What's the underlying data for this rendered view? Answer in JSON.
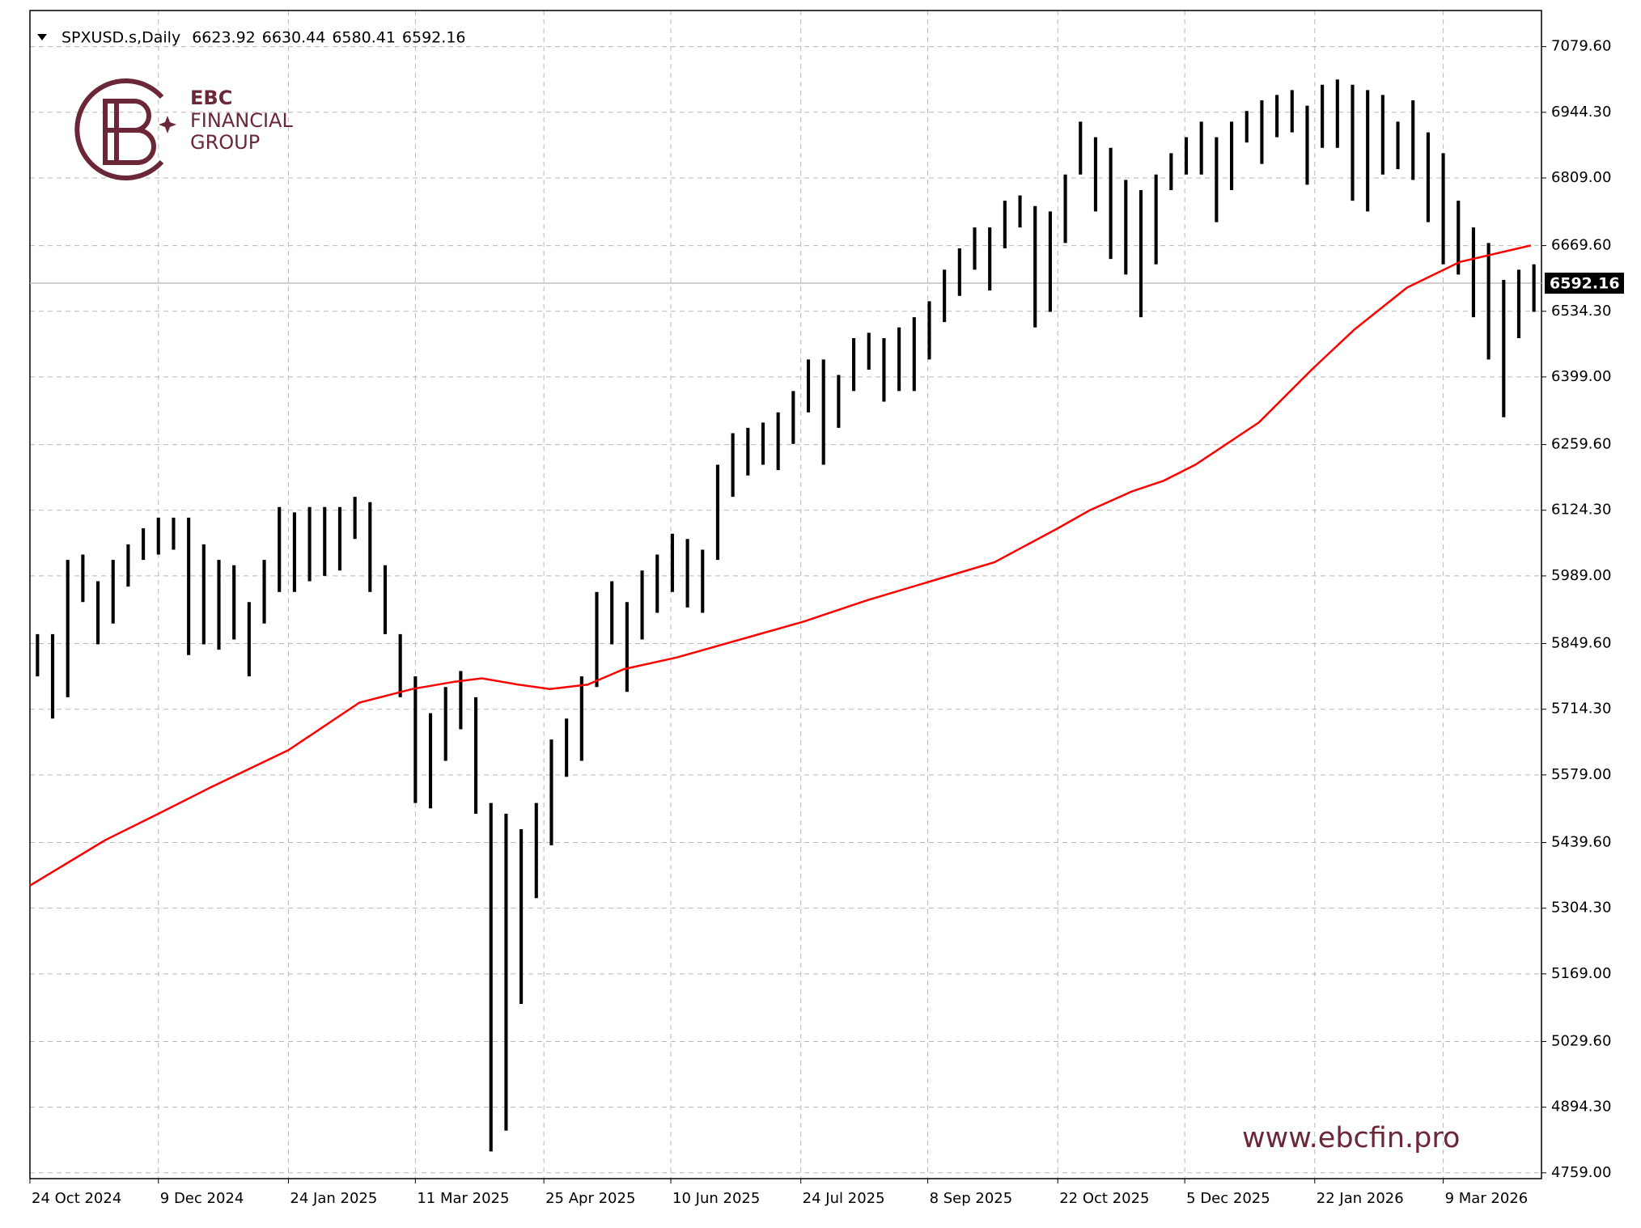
{
  "chart_data": {
    "type": "ohlc",
    "symbol": "SPXUSD.s,Daily",
    "header_ohlc": [
      6623.92,
      6630.44,
      6580.41,
      6592.16
    ],
    "last_price": 6592.16,
    "color": "#000000",
    "grid": true,
    "high": [
      5869,
      5869,
      6022,
      6033,
      5978,
      6022,
      6054,
      6087,
      6109,
      6109,
      6109,
      6054,
      6022,
      6011,
      5935,
      6022,
      6131,
      6120,
      6131,
      6131,
      6131,
      6152,
      6141,
      6011,
      5869,
      5782,
      5706,
      5760,
      5793,
      5739,
      5521,
      5499,
      5467,
      5521,
      5652,
      5695,
      5782,
      5956,
      5978,
      5935,
      6000,
      6033,
      6076,
      6065,
      6043,
      6218,
      6283,
      6294,
      6305,
      6326,
      6370,
      6435,
      6435,
      6403,
      6479,
      6490,
      6479,
      6501,
      6522,
      6555,
      6620,
      6664,
      6707,
      6707,
      6762,
      6773,
      6751,
      6740,
      6816,
      6925,
      6893,
      6871,
      6805,
      6784,
      6816,
      6860,
      6893,
      6925,
      6893,
      6925,
      6947,
      6969,
      6980,
      6990,
      6958,
      7001,
      7012,
      7001,
      6990,
      6980,
      6925,
      6969,
      6903,
      6860,
      6762,
      6707,
      6675,
      6599,
      6620,
      6631
    ],
    "low": [
      5782,
      5695,
      5739,
      5935,
      5848,
      5891,
      5967,
      6022,
      6033,
      6043,
      5826,
      5848,
      5837,
      5858,
      5782,
      5891,
      5956,
      5956,
      5978,
      5989,
      6000,
      6065,
      5956,
      5869,
      5739,
      5521,
      5510,
      5608,
      5673,
      5499,
      4803,
      4846,
      5107,
      5325,
      5434,
      5575,
      5608,
      5760,
      5848,
      5750,
      5858,
      5913,
      5956,
      5924,
      5913,
      6022,
      6152,
      6196,
      6218,
      6207,
      6261,
      6326,
      6218,
      6294,
      6370,
      6414,
      6348,
      6370,
      6370,
      6435,
      6512,
      6566,
      6620,
      6577,
      6664,
      6707,
      6501,
      6533,
      6675,
      6816,
      6740,
      6642,
      6610,
      6522,
      6631,
      6784,
      6816,
      6816,
      6718,
      6784,
      6882,
      6838,
      6893,
      6903,
      6795,
      6871,
      6871,
      6762,
      6740,
      6816,
      6827,
      6805,
      6718,
      6631,
      6610,
      6522,
      6435,
      6316,
      6479,
      6533
    ],
    "ma": {
      "color": "#ff0000",
      "x": [
        0,
        5.0,
        8.5,
        12.0,
        17.1,
        21.8,
        25.3,
        28.1,
        29.9,
        32.3,
        34.4,
        36.9,
        39.3,
        42.8,
        47.0,
        51.2,
        55.4,
        59.6,
        63.8,
        68.0,
        70.1,
        72.9,
        75.0,
        77.1,
        81.3,
        84.8,
        87.6,
        91.1,
        94.6,
        99.3
      ],
      "values": [
        5351,
        5445,
        5499,
        5554,
        5630,
        5728,
        5756,
        5771,
        5778,
        5765,
        5756,
        5765,
        5797,
        5821,
        5858,
        5895,
        5939,
        5978,
        6017,
        6087,
        6124,
        6163,
        6185,
        6218,
        6305,
        6414,
        6496,
        6583,
        6636,
        6670
      ]
    },
    "xlim": [
      0,
      100
    ],
    "xticks": [
      {
        "value": 0,
        "label": "24 Oct 2024"
      },
      {
        "value": 8.5,
        "label": "9 Dec 2024"
      },
      {
        "value": 17.1,
        "label": "24 Jan 2025"
      },
      {
        "value": 25.5,
        "label": "11 Mar 2025"
      },
      {
        "value": 34,
        "label": "25 Apr 2025"
      },
      {
        "value": 42.4,
        "label": "10 Jun 2025"
      },
      {
        "value": 51,
        "label": "24 Jul 2025"
      },
      {
        "value": 59.4,
        "label": "8 Sep 2025"
      },
      {
        "value": 68,
        "label": "22 Oct 2025"
      },
      {
        "value": 76.4,
        "label": "5 Dec 2025"
      },
      {
        "value": 85,
        "label": "22 Jan 2026"
      },
      {
        "value": 93.5,
        "label": "9 Mar 2026"
      }
    ],
    "ylim": [
      4747,
      7154
    ],
    "yticks": [
      {
        "value": 4759,
        "label": "4759.00"
      },
      {
        "value": 4894.3,
        "label": "4894.30"
      },
      {
        "value": 5029.6,
        "label": "5029.60"
      },
      {
        "value": 5169,
        "label": "5169.00"
      },
      {
        "value": 5304.3,
        "label": "5304.30"
      },
      {
        "value": 5439.6,
        "label": "5439.60"
      },
      {
        "value": 5579,
        "label": "5579.00"
      },
      {
        "value": 5714.3,
        "label": "5714.30"
      },
      {
        "value": 5849.6,
        "label": "5849.60"
      },
      {
        "value": 5989,
        "label": "5989.00"
      },
      {
        "value": 6124.3,
        "label": "6124.30"
      },
      {
        "value": 6259.6,
        "label": "6259.60"
      },
      {
        "value": 6399,
        "label": "6399.00"
      },
      {
        "value": 6534.3,
        "label": "6534.30"
      },
      {
        "value": 6669.6,
        "label": "6669.60"
      },
      {
        "value": 6809,
        "label": "6809.00"
      },
      {
        "value": 6944.3,
        "label": "6944.30"
      },
      {
        "value": 7079.6,
        "label": "7079.60"
      }
    ]
  },
  "logo": {
    "lines": [
      "EBC",
      "FINANCIAL",
      "GROUP"
    ]
  },
  "website": "www.ebcfin.pro"
}
